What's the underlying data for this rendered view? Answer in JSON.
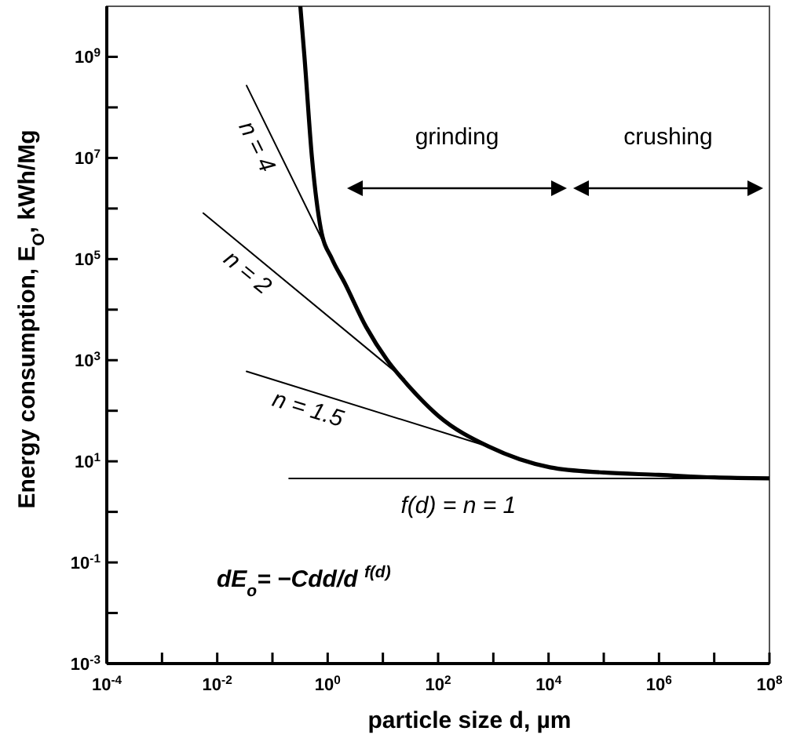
{
  "chart_data": {
    "type": "line",
    "log": "xy",
    "grid": false,
    "line_style": "solid",
    "xlabel": "particle size  d, µm",
    "ylabel": "Energy consumption, E$_{O}$, kWh/Mg",
    "xlim": [
      0.0001,
      100000000
    ],
    "ylim": [
      0.001,
      10000000000
    ],
    "xticks": [
      {
        "value": 0.0001,
        "label": "10$^{-4}$"
      },
      {
        "value": 0.001,
        "label": null
      },
      {
        "value": 0.01,
        "label": "10$^{-2}$"
      },
      {
        "value": 0.1,
        "label": null
      },
      {
        "value": 1,
        "label": "10$^{0}$"
      },
      {
        "value": 10,
        "label": null
      },
      {
        "value": 100,
        "label": "10$^{2}$"
      },
      {
        "value": 1000,
        "label": null
      },
      {
        "value": 10000,
        "label": "10$^{4}$"
      },
      {
        "value": 100000,
        "label": null
      },
      {
        "value": 1000000,
        "label": "10$^{6}$"
      },
      {
        "value": 10000000,
        "label": null
      },
      {
        "value": 100000000,
        "label": "10$^{8}$"
      }
    ],
    "yticks": [
      {
        "value": 0.001,
        "label": "10$^{-3}$"
      },
      {
        "value": 0.01,
        "label": null
      },
      {
        "value": 0.1,
        "label": "10$^{-1}$"
      },
      {
        "value": 1,
        "label": null
      },
      {
        "value": 10,
        "label": "10$^{1}$"
      },
      {
        "value": 100,
        "label": null
      },
      {
        "value": 1000,
        "label": "10$^{3}$"
      },
      {
        "value": 10000,
        "label": null
      },
      {
        "value": 100000,
        "label": "10$^{5}$"
      },
      {
        "value": 1000000,
        "label": null
      },
      {
        "value": 10000000,
        "label": "10$^{7}$"
      },
      {
        "value": 100000000,
        "label": null
      },
      {
        "value": 1000000000,
        "label": "10$^{9}$"
      }
    ],
    "series": [
      {
        "color": "#000000",
        "x": [
          0.32,
          0.38,
          0.52,
          0.75,
          1.2,
          2,
          5,
          12,
          30,
          100,
          830,
          3000,
          10700,
          100000,
          1000000,
          10000000,
          100000000
        ],
        "values": [
          10000000000,
          1000000000,
          10000000,
          400000,
          100000,
          35000,
          4500,
          1000,
          300,
          80,
          19.5,
          11,
          7.6,
          6,
          5.4,
          4.8,
          4.6
        ]
      },
      {
        "name": "n = 4",
        "color": "#000000",
        "x": [
          0.034,
          1.9
        ],
        "values": [
          270000000,
          35000
        ]
      },
      {
        "name": "n = 2",
        "color": "#000000",
        "x": [
          0.0056,
          24.5
        ],
        "values": [
          810000,
          420
        ]
      },
      {
        "name": "n = 1.5",
        "color": "#000000",
        "x": [
          0.034,
          830
        ],
        "values": [
          600,
          19.5
        ]
      },
      {
        "name": "f(d) = n = 1",
        "color": "#000000",
        "x": [
          0.2,
          100000000
        ],
        "values": [
          4.6,
          4.6
        ]
      }
    ],
    "annotations": [
      "grinding",
      "crushing",
      "dE$_{o}$= −Cdd/d $^{f(d)}$"
    ]
  }
}
